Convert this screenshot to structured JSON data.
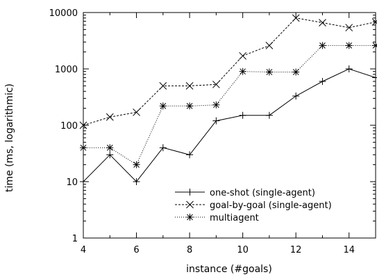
{
  "chart_data": {
    "type": "line",
    "xlabel": "instance (#goals)",
    "ylabel": "time (ms, logarithmic)",
    "y_scale": "log",
    "xlim": [
      4,
      15
    ],
    "ylim": [
      1,
      10000
    ],
    "x_ticks": [
      4,
      6,
      8,
      10,
      12,
      14
    ],
    "x_tick_labels": [
      "4",
      "6",
      "8",
      "10",
      "12",
      "14"
    ],
    "y_ticks": [
      1,
      10,
      100,
      1000,
      10000
    ],
    "y_tick_labels": [
      "1",
      "10",
      "100",
      "1000",
      "10000"
    ],
    "grid": false,
    "legend_position": "bottom-right",
    "x": [
      4,
      5,
      6,
      7,
      8,
      9,
      10,
      11,
      12,
      13,
      14,
      15
    ],
    "series": [
      {
        "name": "one-shot (single-agent)",
        "marker": "plus",
        "line": "solid",
        "values": [
          10,
          30,
          10,
          40,
          30,
          120,
          150,
          150,
          330,
          600,
          1000,
          700
        ]
      },
      {
        "name": "goal-by-goal (single-agent)",
        "marker": "cross",
        "line": "dashed",
        "values": [
          100,
          140,
          170,
          500,
          500,
          530,
          1700,
          2600,
          8000,
          6600,
          5400,
          6800
        ]
      },
      {
        "name": "multiagent",
        "marker": "star",
        "line": "dotted",
        "values": [
          40,
          40,
          20,
          220,
          220,
          230,
          900,
          880,
          880,
          2600,
          2600,
          2600
        ]
      }
    ]
  }
}
